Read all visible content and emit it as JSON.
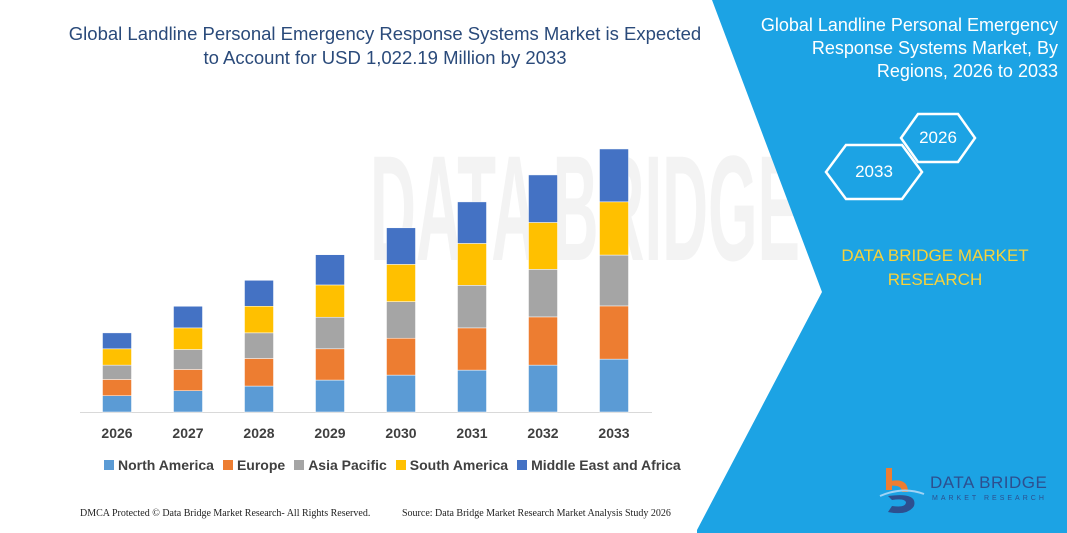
{
  "title": "Global Landline Personal Emergency Response Systems Market is Expected to Account for USD 1,022.19 Million by 2033",
  "right_panel": {
    "title": "Global Landline Personal Emergency Response Systems Market, By Regions, 2026 to 2033",
    "hex_start": "2026",
    "hex_end": "2033",
    "brand": "DATA BRIDGE MARKET RESEARCH",
    "logo_text": "DATA BRIDGE",
    "logo_sub": "MARKET RESEARCH",
    "panel_color": "#1ca3e4",
    "brand_color": "#f8d23a"
  },
  "footer": {
    "left": "DMCA Protected © Data Bridge Market Research-  All Rights Reserved.",
    "right": "Source: Data Bridge Market Research  Market Analysis Study 2026"
  },
  "watermark": "DATA BRIDGE",
  "chart_data": {
    "type": "bar",
    "stacked": true,
    "categories": [
      "2026",
      "2027",
      "2028",
      "2029",
      "2030",
      "2031",
      "2032",
      "2033"
    ],
    "series": [
      {
        "name": "North America",
        "color": "#5b9bd5",
        "values": [
          63.3,
          82.7,
          100.8,
          124.1,
          143.4,
          162.8,
          182.2,
          205.5
        ]
      },
      {
        "name": "Europe",
        "color": "#ed7d31",
        "values": [
          63.3,
          82.7,
          107.3,
          121.5,
          143.4,
          164.1,
          187.4,
          206.8
        ]
      },
      {
        "name": "Asia Pacific",
        "color": "#a5a5a5",
        "values": [
          55.6,
          77.5,
          99.5,
          122.8,
          142.2,
          165.4,
          184.8,
          197.7
        ]
      },
      {
        "name": "South America",
        "color": "#ffc000",
        "values": [
          63.3,
          84.0,
          103.4,
          125.4,
          144.7,
          162.8,
          182.2,
          206.8
        ]
      },
      {
        "name": "Middle East and Africa",
        "color": "#4472c4",
        "values": [
          62.0,
          84.0,
          100.8,
          117.6,
          142.2,
          161.5,
          184.8,
          205.5
        ]
      }
    ],
    "ylim": [
      0,
      1022.19
    ],
    "grid": false,
    "legend": "bottom",
    "xlabel": "",
    "ylabel": ""
  }
}
